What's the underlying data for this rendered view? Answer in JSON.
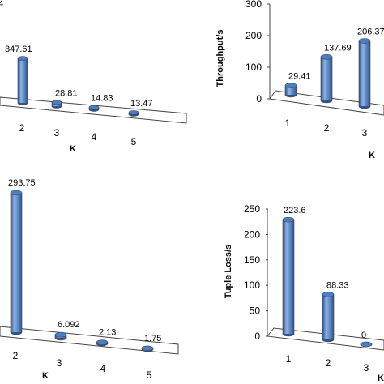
{
  "chart_data": [
    {
      "type": "bar",
      "categories": [
        "2",
        "3",
        "4",
        "5"
      ],
      "values": [
        347.61,
        28.81,
        14.83,
        13.47
      ],
      "labels": [
        "347.61",
        "28.81",
        "14.83",
        "13.47"
      ],
      "xlabel": "K",
      "ylabel": "",
      "ylim": [
        0,
        400
      ],
      "grid": false
    },
    {
      "type": "bar",
      "categories": [
        "1",
        "2",
        "3"
      ],
      "values": [
        29.41,
        137.69,
        206.377
      ],
      "labels": [
        "29.41",
        "137.69",
        "206.377"
      ],
      "xlabel": "K",
      "ylabel": "Throughput/s",
      "ylim": [
        0,
        300
      ],
      "yticks": [
        "0",
        "100",
        "200",
        "300"
      ],
      "grid": false
    },
    {
      "type": "bar",
      "categories": [
        "2",
        "3",
        "4",
        "5"
      ],
      "values": [
        293.75,
        6.092,
        2.13,
        1.75
      ],
      "labels": [
        "293.75",
        "6.092",
        "2.13",
        "1.75"
      ],
      "xlabel": "K",
      "ylabel": "",
      "ylim": [
        0,
        300
      ],
      "grid": false
    },
    {
      "type": "bar",
      "categories": [
        "1",
        "2",
        "3"
      ],
      "values": [
        223.6,
        88.33,
        0
      ],
      "labels": [
        "223.6",
        "88.33",
        "0"
      ],
      "xlabel": "K",
      "ylabel": "Tuple Loss/s",
      "ylim": [
        0,
        250
      ],
      "yticks": [
        "0",
        "50",
        "100",
        "150",
        "200",
        "250"
      ],
      "grid": false
    }
  ],
  "colors": {
    "bar_front": "#4a7fc8",
    "bar_dark": "#2b5592",
    "bar_light": "#8db3e6",
    "floor": "#ffffff",
    "outline": "#444444"
  }
}
